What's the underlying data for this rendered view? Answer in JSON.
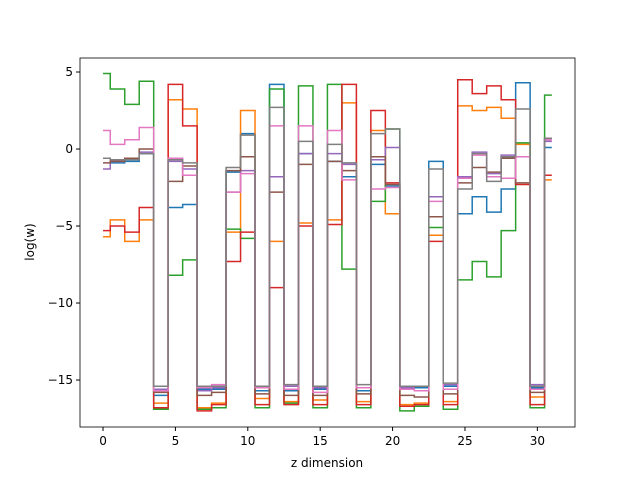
{
  "chart_data": {
    "type": "step",
    "xlabel": "z dimension",
    "ylabel": "log(w)",
    "x": [
      0,
      1,
      2,
      3,
      4,
      5,
      6,
      7,
      8,
      9,
      10,
      11,
      12,
      13,
      14,
      15,
      16,
      17,
      18,
      19,
      20,
      21,
      22,
      23,
      24,
      25,
      26,
      27,
      28,
      29,
      30,
      31
    ],
    "xlim": [
      -1.59,
      32.6
    ],
    "ylim": [
      -18.05,
      5.91
    ],
    "xticks": [
      0,
      5,
      10,
      15,
      20,
      25,
      30
    ],
    "yticks": [
      {
        "value": -15,
        "label": "−15"
      },
      {
        "value": -10,
        "label": "−10"
      },
      {
        "value": -5,
        "label": "−5"
      },
      0,
      5
    ],
    "series": [
      {
        "color": "#1f77b4",
        "values": [
          -0.6,
          -0.9,
          -0.8,
          -0.3,
          -16.0,
          -3.8,
          -3.6,
          -15.6,
          -15.6,
          -1.5,
          1.0,
          -15.7,
          4.2,
          -15.7,
          -0.3,
          -15.6,
          -0.8,
          -1.8,
          -15.7,
          -1.0,
          -2.4,
          -15.5,
          -15.5,
          -0.8,
          -15.4,
          -4.2,
          -3.1,
          -4.1,
          -2.6,
          4.3,
          -15.5,
          0.1
        ]
      },
      {
        "color": "#ff7f0e",
        "values": [
          -5.7,
          -4.6,
          -6.0,
          -4.6,
          -16.5,
          3.2,
          2.6,
          -16.8,
          -16.5,
          -5.4,
          2.5,
          -16.2,
          -6.0,
          -16.4,
          -4.8,
          -16.3,
          -4.6,
          3.0,
          -16.4,
          1.2,
          -4.2,
          -16.6,
          -16.5,
          -5.6,
          -16.4,
          2.8,
          2.5,
          2.7,
          2.0,
          0.3,
          -16.1,
          -2.0
        ]
      },
      {
        "color": "#2ca02c",
        "values": [
          4.9,
          3.9,
          2.9,
          4.4,
          -16.9,
          -8.2,
          -7.2,
          -16.9,
          -16.8,
          -5.2,
          -5.8,
          -16.8,
          3.9,
          -16.5,
          4.1,
          -16.8,
          4.2,
          -7.8,
          -16.8,
          -3.4,
          1.3,
          -17.0,
          -16.7,
          -5.1,
          -16.9,
          -8.5,
          -7.3,
          -8.3,
          -5.3,
          0.4,
          -16.8,
          3.5
        ]
      },
      {
        "color": "#d62728",
        "values": [
          -5.3,
          -5.0,
          -5.4,
          -3.8,
          -16.8,
          4.2,
          1.5,
          -17.0,
          -16.6,
          -7.3,
          -5.4,
          -16.6,
          -9.0,
          -16.6,
          -5.0,
          -16.6,
          -4.9,
          4.2,
          -16.6,
          2.5,
          -2.2,
          -16.7,
          -16.6,
          -6.0,
          -16.6,
          4.5,
          3.6,
          4.1,
          3.2,
          -2.3,
          -16.6,
          -1.7
        ]
      },
      {
        "color": "#9467bd",
        "values": [
          -1.3,
          -0.8,
          -0.7,
          -0.2,
          -15.6,
          -0.8,
          -1.3,
          -15.7,
          -15.5,
          -2.8,
          -1.4,
          -15.4,
          -1.8,
          -15.4,
          -0.3,
          -15.5,
          -0.3,
          -1.0,
          -15.5,
          -0.7,
          0.1,
          -15.5,
          -15.4,
          -3.1,
          -15.3,
          -1.8,
          -0.2,
          -1.6,
          -0.4,
          -0.5,
          -15.3,
          0.5
        ]
      },
      {
        "color": "#8c564b",
        "values": [
          -0.9,
          -0.8,
          -0.6,
          0.0,
          -15.8,
          -2.1,
          -1.1,
          -16.0,
          -15.8,
          -1.4,
          -0.5,
          -15.9,
          -2.8,
          -16.0,
          -1.0,
          -16.0,
          -0.8,
          -1.4,
          -15.9,
          -0.5,
          -2.3,
          -16.0,
          -16.1,
          -4.4,
          -15.9,
          -2.2,
          -1.2,
          -1.5,
          -0.6,
          -2.2,
          -15.8,
          0.7
        ]
      },
      {
        "color": "#e377c2",
        "values": [
          1.2,
          0.3,
          0.6,
          1.4,
          -15.7,
          -0.6,
          -1.7,
          -15.5,
          -15.3,
          -2.8,
          -1.6,
          -15.5,
          1.5,
          -15.6,
          1.5,
          -15.8,
          1.2,
          -2.0,
          -15.5,
          -2.6,
          -2.5,
          -15.6,
          -15.7,
          -3.4,
          -15.6,
          -1.9,
          -0.4,
          -1.8,
          -1.9,
          -0.5,
          -15.6,
          0.6
        ]
      },
      {
        "color": "#7f7f7f",
        "values": [
          -0.6,
          -0.7,
          -0.7,
          -0.3,
          -15.4,
          -0.7,
          -0.9,
          -15.4,
          -15.4,
          -1.2,
          0.9,
          -15.4,
          2.7,
          -15.3,
          0.5,
          -15.4,
          0.3,
          -0.9,
          -15.3,
          1.0,
          1.3,
          -15.4,
          -15.4,
          -1.3,
          -15.2,
          -2.6,
          -0.3,
          -2.1,
          -0.5,
          2.6,
          -15.4,
          0.7
        ]
      }
    ]
  }
}
